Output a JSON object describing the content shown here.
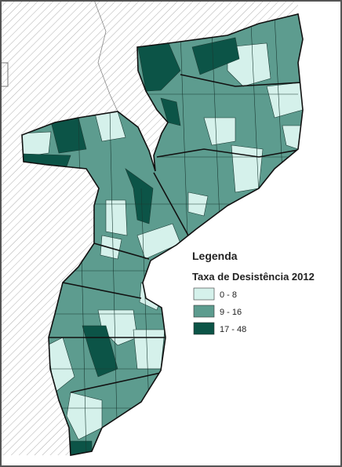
{
  "legend": {
    "title": "Legenda",
    "subtitle": "Taxa de Desistência 2012",
    "items": [
      {
        "label": "0 - 8",
        "color": "#d5f1eb"
      },
      {
        "label": "9 - 16",
        "color": "#5d9c8f"
      },
      {
        "label": "17 - 48",
        "color": "#0c5447"
      }
    ]
  }
}
